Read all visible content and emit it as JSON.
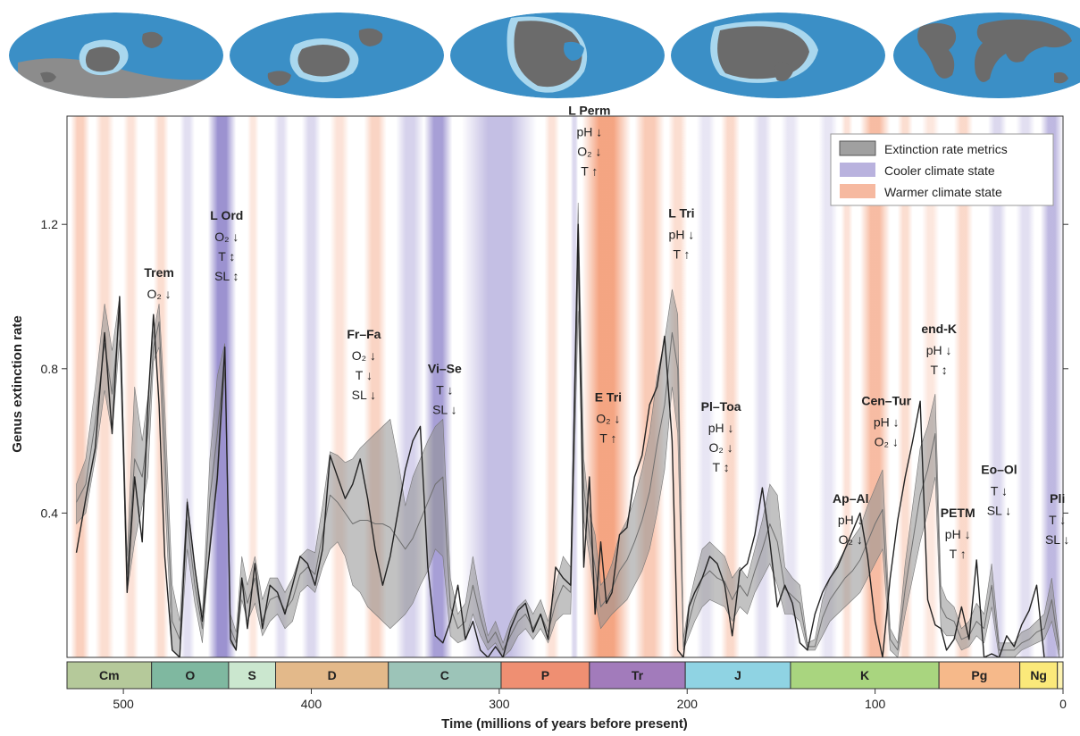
{
  "chart_data": {
    "type": "area",
    "xlabel": "Time (millions of years before present)",
    "ylabel": "Genus extinction rate",
    "xlim": [
      530,
      0
    ],
    "ylim": [
      0,
      1.5
    ],
    "x_ticks": [
      "500",
      "400",
      "300",
      "200",
      "100",
      "0"
    ],
    "x_tick_values": [
      500,
      400,
      300,
      200,
      100,
      0
    ],
    "y_ticks": [
      "1.2",
      "0.8",
      "0.4"
    ],
    "y_tick_values": [
      1.2,
      0.8,
      0.4
    ],
    "grid": false,
    "legend_position": "top-right",
    "legend": [
      {
        "label": "Extinction rate metrics",
        "kind": "band"
      },
      {
        "label": "Cooler climate state",
        "kind": "cool"
      },
      {
        "label": "Warmer climate state",
        "kind": "warm"
      }
    ],
    "series": [
      {
        "kind": "band",
        "x": [
          525,
          520,
          515,
          510,
          506,
          502,
          498,
          494,
          490,
          487,
          484,
          481,
          478,
          474,
          470,
          466,
          462,
          458,
          454,
          450,
          446,
          443,
          440,
          437,
          434,
          430,
          426,
          422,
          418,
          414,
          410,
          406,
          402,
          398,
          394,
          390,
          386,
          382,
          378,
          374,
          370,
          366,
          362,
          358,
          354,
          350,
          346,
          342,
          338,
          334,
          330,
          326,
          322,
          318,
          314,
          310,
          306,
          302,
          298,
          294,
          290,
          286,
          282,
          278,
          274,
          270,
          266,
          262,
          258,
          255,
          252,
          249,
          246,
          243,
          240,
          236,
          232,
          228,
          224,
          220,
          216,
          212,
          208,
          205,
          202,
          199,
          196,
          192,
          188,
          184,
          180,
          176,
          172,
          168,
          164,
          160,
          156,
          152,
          148,
          144,
          140,
          136,
          132,
          128,
          124,
          120,
          116,
          112,
          108,
          104,
          100,
          96,
          92,
          88,
          84,
          80,
          76,
          72,
          68,
          65,
          62,
          58,
          54,
          50,
          46,
          42,
          38,
          34,
          30,
          26,
          22,
          18,
          14,
          10,
          6,
          2
        ],
        "upper": [
          0.48,
          0.55,
          0.75,
          0.98,
          0.85,
          1.0,
          0.28,
          0.75,
          0.6,
          0.72,
          0.9,
          0.98,
          0.7,
          0.2,
          0.1,
          0.44,
          0.25,
          0.12,
          0.55,
          0.78,
          0.87,
          0.12,
          0.07,
          0.28,
          0.2,
          0.28,
          0.16,
          0.22,
          0.22,
          0.18,
          0.22,
          0.28,
          0.3,
          0.29,
          0.42,
          0.57,
          0.56,
          0.54,
          0.55,
          0.58,
          0.6,
          0.62,
          0.64,
          0.66,
          0.55,
          0.42,
          0.5,
          0.55,
          0.6,
          0.64,
          0.66,
          0.22,
          0.12,
          0.15,
          0.28,
          0.16,
          0.06,
          0.1,
          0.04,
          0.1,
          0.14,
          0.16,
          0.12,
          0.16,
          0.1,
          0.2,
          0.28,
          0.25,
          1.26,
          0.55,
          0.4,
          0.34,
          0.2,
          0.22,
          0.26,
          0.34,
          0.38,
          0.44,
          0.52,
          0.62,
          0.78,
          0.88,
          1.02,
          0.95,
          0.05,
          0.15,
          0.22,
          0.3,
          0.32,
          0.3,
          0.28,
          0.22,
          0.25,
          0.22,
          0.3,
          0.38,
          0.48,
          0.45,
          0.25,
          0.22,
          0.2,
          0.04,
          0.05,
          0.16,
          0.22,
          0.26,
          0.3,
          0.33,
          0.36,
          0.42,
          0.47,
          0.52,
          0.08,
          0.04,
          0.26,
          0.42,
          0.58,
          0.64,
          0.73,
          0.2,
          0.16,
          0.14,
          0.08,
          0.1,
          0.15,
          0.12,
          0.26,
          0.04,
          0.04,
          0.04,
          0.07,
          0.08,
          0.1,
          0.12,
          0.22,
          0.04
        ],
        "lower": [
          0.37,
          0.4,
          0.55,
          0.74,
          0.62,
          0.88,
          0.18,
          0.32,
          0.42,
          0.5,
          0.82,
          0.86,
          0.45,
          0.02,
          0.0,
          0.3,
          0.15,
          0.04,
          0.32,
          0.48,
          0.8,
          0.04,
          0.02,
          0.16,
          0.1,
          0.15,
          0.06,
          0.1,
          0.12,
          0.08,
          0.1,
          0.18,
          0.2,
          0.18,
          0.25,
          0.3,
          0.32,
          0.28,
          0.2,
          0.18,
          0.14,
          0.12,
          0.1,
          0.08,
          0.1,
          0.12,
          0.15,
          0.2,
          0.24,
          0.3,
          0.28,
          0.06,
          0.04,
          0.05,
          0.12,
          0.06,
          0.02,
          0.04,
          0.0,
          0.02,
          0.06,
          0.08,
          0.05,
          0.08,
          0.04,
          0.1,
          0.12,
          0.12,
          0.96,
          0.38,
          0.28,
          0.16,
          0.08,
          0.1,
          0.12,
          0.14,
          0.16,
          0.2,
          0.24,
          0.3,
          0.4,
          0.52,
          0.75,
          0.62,
          0.02,
          0.06,
          0.1,
          0.14,
          0.16,
          0.15,
          0.14,
          0.1,
          0.14,
          0.12,
          0.18,
          0.22,
          0.26,
          0.2,
          0.12,
          0.12,
          0.1,
          0.02,
          0.02,
          0.06,
          0.1,
          0.12,
          0.14,
          0.16,
          0.18,
          0.22,
          0.26,
          0.3,
          0.02,
          0.0,
          0.12,
          0.22,
          0.32,
          0.4,
          0.5,
          0.08,
          0.06,
          0.06,
          0.02,
          0.03,
          0.06,
          0.04,
          0.14,
          0.0,
          0.0,
          0.0,
          0.02,
          0.03,
          0.04,
          0.05,
          0.1,
          0.0
        ],
        "line1": [
          0.43,
          0.48,
          0.65,
          0.87,
          0.73,
          0.95,
          0.23,
          0.55,
          0.5,
          0.62,
          0.86,
          0.93,
          0.58,
          0.1,
          0.05,
          0.38,
          0.2,
          0.08,
          0.44,
          0.62,
          0.84,
          0.08,
          0.04,
          0.22,
          0.15,
          0.22,
          0.1,
          0.16,
          0.17,
          0.13,
          0.16,
          0.23,
          0.25,
          0.23,
          0.34,
          0.45,
          0.43,
          0.4,
          0.37,
          0.38,
          0.38,
          0.37,
          0.37,
          0.36,
          0.33,
          0.3,
          0.33,
          0.38,
          0.43,
          0.48,
          0.5,
          0.14,
          0.08,
          0.1,
          0.2,
          0.11,
          0.04,
          0.07,
          0.02,
          0.06,
          0.1,
          0.12,
          0.08,
          0.12,
          0.07,
          0.15,
          0.2,
          0.18,
          1.1,
          0.47,
          0.34,
          0.25,
          0.14,
          0.16,
          0.19,
          0.24,
          0.27,
          0.32,
          0.38,
          0.46,
          0.59,
          0.7,
          0.9,
          0.8,
          0.03,
          0.1,
          0.16,
          0.22,
          0.24,
          0.22,
          0.21,
          0.16,
          0.2,
          0.17,
          0.24,
          0.3,
          0.37,
          0.32,
          0.19,
          0.17,
          0.15,
          0.03,
          0.03,
          0.11,
          0.16,
          0.19,
          0.22,
          0.24,
          0.27,
          0.32,
          0.37,
          0.41,
          0.05,
          0.02,
          0.19,
          0.32,
          0.45,
          0.52,
          0.62,
          0.14,
          0.11,
          0.1,
          0.05,
          0.06,
          0.1,
          0.08,
          0.2,
          0.02,
          0.02,
          0.02,
          0.04,
          0.05,
          0.07,
          0.08,
          0.16,
          0.02
        ],
        "line2": [
          0.29,
          0.44,
          0.58,
          0.9,
          0.62,
          1.0,
          0.18,
          0.5,
          0.32,
          0.7,
          0.95,
          0.7,
          0.28,
          0.02,
          0.0,
          0.43,
          0.25,
          0.1,
          0.3,
          0.5,
          0.86,
          0.05,
          0.02,
          0.22,
          0.08,
          0.26,
          0.08,
          0.2,
          0.18,
          0.12,
          0.2,
          0.28,
          0.26,
          0.2,
          0.3,
          0.56,
          0.5,
          0.44,
          0.48,
          0.55,
          0.44,
          0.3,
          0.2,
          0.28,
          0.4,
          0.52,
          0.6,
          0.64,
          0.25,
          0.06,
          0.04,
          0.1,
          0.2,
          0.05,
          0.1,
          0.02,
          0.0,
          0.03,
          0.0,
          0.08,
          0.13,
          0.15,
          0.07,
          0.12,
          0.05,
          0.25,
          0.22,
          0.2,
          1.2,
          0.25,
          0.5,
          0.12,
          0.32,
          0.15,
          0.18,
          0.34,
          0.36,
          0.5,
          0.56,
          0.7,
          0.75,
          0.89,
          0.6,
          0.02,
          0.0,
          0.14,
          0.18,
          0.22,
          0.28,
          0.26,
          0.2,
          0.06,
          0.24,
          0.26,
          0.34,
          0.47,
          0.32,
          0.14,
          0.2,
          0.15,
          0.04,
          0.02,
          0.12,
          0.18,
          0.22,
          0.25,
          0.3,
          0.35,
          0.4,
          0.28,
          0.1,
          0.0,
          0.22,
          0.38,
          0.5,
          0.6,
          0.71,
          0.16,
          0.09,
          0.08,
          0.02,
          0.05,
          0.14,
          0.05,
          0.27,
          0.0,
          0.01,
          0.0,
          0.06,
          0.03,
          0.09,
          0.13,
          0.2,
          0.0
        ]
      }
    ],
    "events": [
      {
        "name": "Trem",
        "lines": [
          "O₂ ↓"
        ],
        "age": 481,
        "y": 0.98
      },
      {
        "name": "L Ord",
        "lines": [
          "O₂ ↓",
          "T ↕",
          "SL ↕"
        ],
        "age": 445,
        "y": 1.03
      },
      {
        "name": "Fr–Fa",
        "lines": [
          "O₂ ↓",
          "T ↓",
          "SL ↓"
        ],
        "age": 372,
        "y": 0.7
      },
      {
        "name": "Vi–Se",
        "lines": [
          "T ↓",
          "SL ↓"
        ],
        "age": 329,
        "y": 0.66
      },
      {
        "name": "L Perm",
        "lines": [
          "pH ↓",
          "O₂ ↓",
          "T ↑"
        ],
        "age": 252,
        "y": 1.32
      },
      {
        "name": "E Tri",
        "lines": [
          "O₂ ↓",
          "T ↑"
        ],
        "age": 242,
        "y": 0.58
      },
      {
        "name": "L Tri",
        "lines": [
          "pH ↓",
          "T ↑"
        ],
        "age": 203,
        "y": 1.09
      },
      {
        "name": "Pl–Toa",
        "lines": [
          "pH ↓",
          "O₂ ↓",
          "T ↕"
        ],
        "age": 182,
        "y": 0.5
      },
      {
        "name": "Ap–Al",
        "lines": [
          "pH ↓",
          "O₂ ↓"
        ],
        "age": 113,
        "y": 0.3
      },
      {
        "name": "Cen–Tur",
        "lines": [
          "pH ↓",
          "O₂ ↓"
        ],
        "age": 94,
        "y": 0.57
      },
      {
        "name": "end-K",
        "lines": [
          "pH ↓",
          "T ↕"
        ],
        "age": 66,
        "y": 0.77
      },
      {
        "name": "PETM",
        "lines": [
          "pH ↓",
          "T ↑"
        ],
        "age": 56,
        "y": 0.26
      },
      {
        "name": "Eo–Ol",
        "lines": [
          "T ↓",
          "SL ↓"
        ],
        "age": 34,
        "y": 0.38
      },
      {
        "name": "Pli",
        "lines": [
          "T ↓",
          "SL ↓"
        ],
        "age": 3,
        "y": 0.3
      }
    ],
    "periods": [
      {
        "label": "Cm",
        "start": 538,
        "end": 485,
        "color": "#b5c99a"
      },
      {
        "label": "O",
        "start": 485,
        "end": 444,
        "color": "#7fb8a0"
      },
      {
        "label": "S",
        "start": 444,
        "end": 419,
        "color": "#cbe7cf"
      },
      {
        "label": "D",
        "start": 419,
        "end": 359,
        "color": "#e3b98a"
      },
      {
        "label": "C",
        "start": 359,
        "end": 299,
        "color": "#9cc4b8"
      },
      {
        "label": "P",
        "start": 299,
        "end": 252,
        "color": "#ef8f72"
      },
      {
        "label": "Tr",
        "start": 252,
        "end": 201,
        "color": "#a27bbb"
      },
      {
        "label": "J",
        "start": 201,
        "end": 145,
        "color": "#8fd3e3"
      },
      {
        "label": "K",
        "start": 145,
        "end": 66,
        "color": "#a9d57f"
      },
      {
        "label": "Pg",
        "start": 66,
        "end": 23,
        "color": "#f6b98a"
      },
      {
        "label": "Ng",
        "start": 23,
        "end": 3,
        "color": "#fbe97a"
      },
      {
        "label": "",
        "start": 3,
        "end": 0,
        "color": "#fdf3b2"
      }
    ],
    "climate": [
      {
        "start": 528,
        "end": 518,
        "state": "warm",
        "strength": 0.5
      },
      {
        "start": 515,
        "end": 505,
        "state": "warm",
        "strength": 0.35
      },
      {
        "start": 500,
        "end": 492,
        "state": "warm",
        "strength": 0.3
      },
      {
        "start": 484,
        "end": 476,
        "state": "warm",
        "strength": 0.35
      },
      {
        "start": 470,
        "end": 462,
        "state": "cool",
        "strength": 0.25
      },
      {
        "start": 455,
        "end": 440,
        "state": "cool",
        "strength": 0.85
      },
      {
        "start": 434,
        "end": 428,
        "state": "warm",
        "strength": 0.25
      },
      {
        "start": 420,
        "end": 412,
        "state": "cool",
        "strength": 0.25
      },
      {
        "start": 405,
        "end": 395,
        "state": "cool",
        "strength": 0.3
      },
      {
        "start": 390,
        "end": 380,
        "state": "warm",
        "strength": 0.3
      },
      {
        "start": 372,
        "end": 360,
        "state": "warm",
        "strength": 0.45
      },
      {
        "start": 355,
        "end": 340,
        "state": "cool",
        "strength": 0.35
      },
      {
        "start": 340,
        "end": 325,
        "state": "cool",
        "strength": 0.75
      },
      {
        "start": 320,
        "end": 280,
        "state": "cool",
        "strength": 0.5
      },
      {
        "start": 276,
        "end": 268,
        "state": "warm",
        "strength": 0.3
      },
      {
        "start": 262,
        "end": 258,
        "state": "cool",
        "strength": 0.3
      },
      {
        "start": 256,
        "end": 230,
        "state": "warm",
        "strength": 0.95
      },
      {
        "start": 228,
        "end": 212,
        "state": "warm",
        "strength": 0.55
      },
      {
        "start": 210,
        "end": 200,
        "state": "warm",
        "strength": 0.35
      },
      {
        "start": 195,
        "end": 185,
        "state": "cool",
        "strength": 0.2
      },
      {
        "start": 182,
        "end": 172,
        "state": "warm",
        "strength": 0.4
      },
      {
        "start": 165,
        "end": 155,
        "state": "cool",
        "strength": 0.25
      },
      {
        "start": 150,
        "end": 140,
        "state": "cool",
        "strength": 0.2
      },
      {
        "start": 130,
        "end": 120,
        "state": "cool",
        "strength": 0.2
      },
      {
        "start": 118,
        "end": 112,
        "state": "warm",
        "strength": 0.3
      },
      {
        "start": 108,
        "end": 92,
        "state": "warm",
        "strength": 0.7
      },
      {
        "start": 88,
        "end": 80,
        "state": "warm",
        "strength": 0.35
      },
      {
        "start": 75,
        "end": 66,
        "state": "warm",
        "strength": 0.25
      },
      {
        "start": 58,
        "end": 48,
        "state": "warm",
        "strength": 0.4
      },
      {
        "start": 40,
        "end": 30,
        "state": "cool",
        "strength": 0.3
      },
      {
        "start": 25,
        "end": 15,
        "state": "cool",
        "strength": 0.25
      },
      {
        "start": 12,
        "end": 0,
        "state": "cool",
        "strength": 0.55
      }
    ]
  }
}
